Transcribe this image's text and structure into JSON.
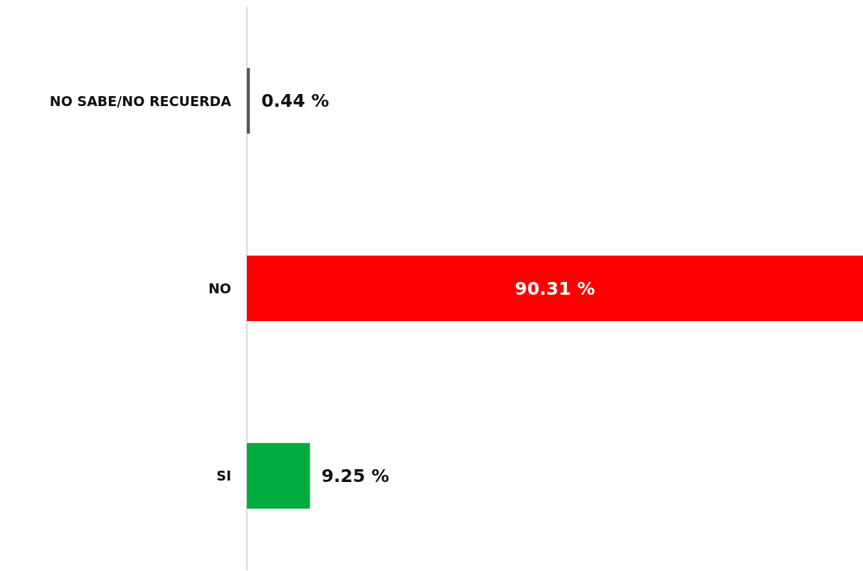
{
  "chart_data": {
    "type": "bar",
    "orientation": "horizontal",
    "categories": [
      "NO SABE/NO RECUERDA",
      "NO",
      "SI"
    ],
    "values": [
      0.44,
      90.31,
      9.25
    ],
    "colors": [
      "#555555",
      "#ff0000",
      "#00ac3e"
    ],
    "value_labels": [
      "0.44 %",
      "90.31 %",
      "9.25 %"
    ]
  }
}
